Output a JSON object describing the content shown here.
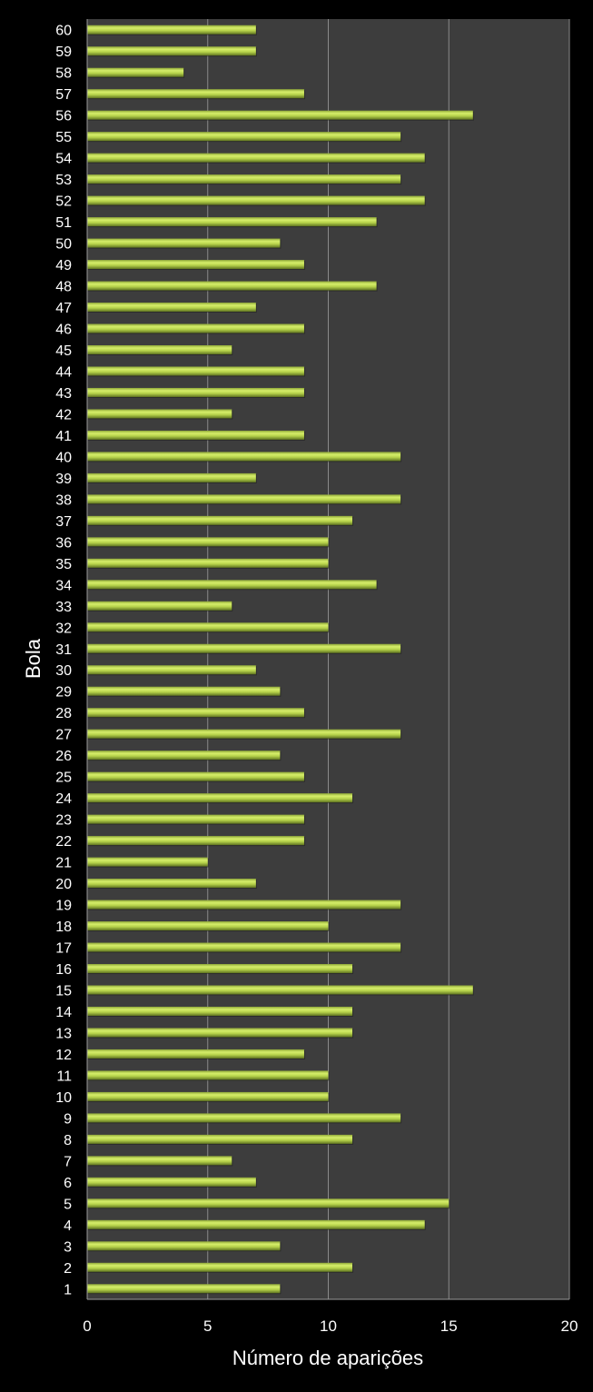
{
  "chart_data": {
    "type": "bar",
    "orientation": "horizontal",
    "xlabel": "Número de aparições",
    "ylabel": "Bola",
    "xlim": [
      0,
      20
    ],
    "xticks": [
      0,
      5,
      10,
      15,
      20
    ],
    "grid": true,
    "bar_color": "#b5d14a",
    "plot_background": "#3d3d3d",
    "background": "#000000",
    "categories": [
      "1",
      "2",
      "3",
      "4",
      "5",
      "6",
      "7",
      "8",
      "9",
      "10",
      "11",
      "12",
      "13",
      "14",
      "15",
      "16",
      "17",
      "18",
      "19",
      "20",
      "21",
      "22",
      "23",
      "24",
      "25",
      "26",
      "27",
      "28",
      "29",
      "30",
      "31",
      "32",
      "33",
      "34",
      "35",
      "36",
      "37",
      "38",
      "39",
      "40",
      "41",
      "42",
      "43",
      "44",
      "45",
      "46",
      "47",
      "48",
      "49",
      "50",
      "51",
      "52",
      "53",
      "54",
      "55",
      "56",
      "57",
      "58",
      "59",
      "60"
    ],
    "values": [
      8,
      11,
      8,
      14,
      15,
      7,
      6,
      11,
      13,
      10,
      10,
      9,
      11,
      11,
      16,
      11,
      13,
      10,
      13,
      7,
      5,
      9,
      9,
      11,
      9,
      8,
      13,
      9,
      8,
      7,
      13,
      10,
      6,
      12,
      10,
      10,
      11,
      13,
      7,
      13,
      9,
      6,
      9,
      9,
      6,
      9,
      7,
      12,
      9,
      8,
      12,
      14,
      13,
      14,
      13,
      16,
      9,
      4,
      7,
      7
    ]
  }
}
